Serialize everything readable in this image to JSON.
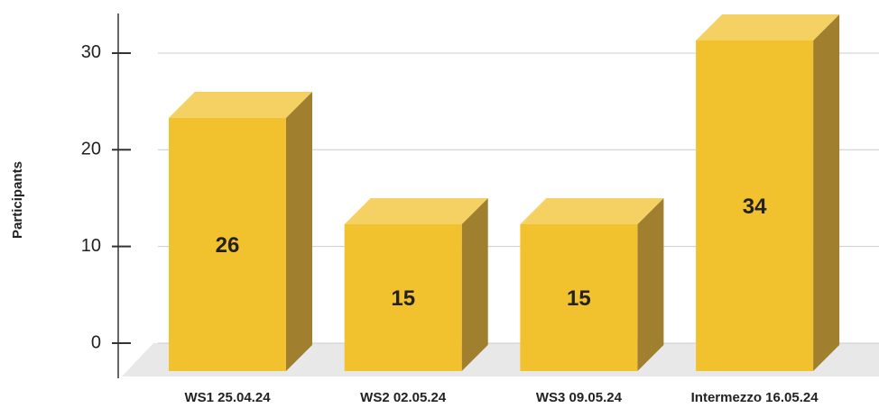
{
  "chart_data": {
    "type": "bar3d",
    "y_label": "Participants",
    "categories": [
      "WS1 25.04.24",
      "WS2 02.05.24",
      "WS3 09.05.24",
      "Intermezzo 16.05.24"
    ],
    "values": [
      26,
      15,
      15,
      34
    ],
    "ylim": [
      0,
      34
    ],
    "yticks": [
      0,
      10,
      20,
      30
    ],
    "grid": true,
    "colors": {
      "front": "#f2c12e",
      "top": "#f5d063",
      "side": "#a07f2e"
    }
  }
}
